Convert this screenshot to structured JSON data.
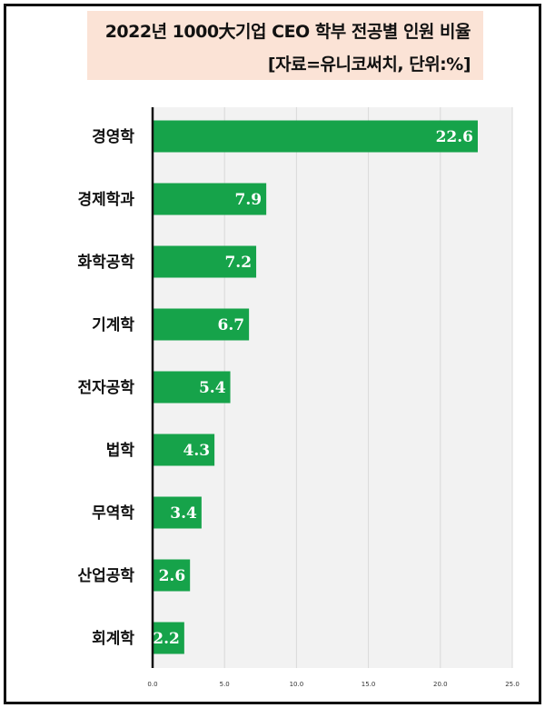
{
  "chart_data": {
    "type": "bar",
    "orientation": "horizontal",
    "title": "2022년 1000大기업 CEO 학부 전공별 인원 비율",
    "subtitle": "[자료=유니코써치, 단위:%]",
    "categories": [
      "경영학",
      "경제학과",
      "화학공학",
      "기계학",
      "전자공학",
      "법학",
      "무역학",
      "산업공학",
      "회계학"
    ],
    "values": [
      22.6,
      7.9,
      7.2,
      6.7,
      5.4,
      4.3,
      3.4,
      2.6,
      2.2
    ],
    "value_labels": [
      "22.6",
      "7.9",
      "7.2",
      "6.7",
      "5.4",
      "4.3",
      "3.4",
      "2.6",
      "2.2"
    ],
    "xlim": [
      0,
      25
    ],
    "xticks": [
      0,
      5,
      10,
      15,
      20,
      25
    ],
    "xtick_labels": [
      "0.0",
      "5.0",
      "10.0",
      "15.0",
      "20.0",
      "25.0"
    ],
    "grid": true,
    "colors": {
      "bar": "#16a34a",
      "title_bg": "#fbe3d6",
      "grid": "#d9d9d9",
      "axis": "#111111"
    }
  }
}
